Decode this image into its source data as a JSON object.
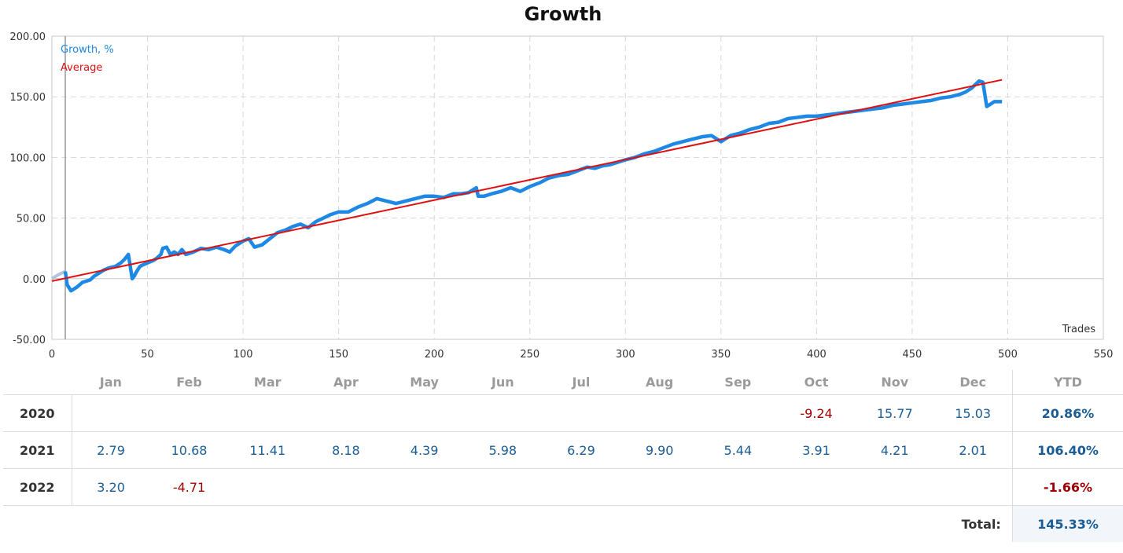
{
  "chart_data": {
    "type": "line",
    "title": "Growth",
    "xlabel": "Trades",
    "ylabel": "",
    "xlim": [
      0,
      550
    ],
    "ylim": [
      -50,
      200
    ],
    "x_ticks": [
      0,
      50,
      100,
      150,
      200,
      250,
      300,
      350,
      400,
      450,
      500,
      550
    ],
    "y_ticks": [
      -50,
      0,
      50,
      100,
      150,
      200
    ],
    "x_tick_labels": [
      "0",
      "50",
      "100",
      "150",
      "200",
      "250",
      "300",
      "350",
      "400",
      "450",
      "500",
      "550"
    ],
    "y_tick_labels": [
      "-50.00",
      "0.00",
      "50.00",
      "100.00",
      "150.00",
      "200.00"
    ],
    "grid": true,
    "legend_position": "top-left",
    "colors": {
      "growth": "#1e88e5",
      "average": "#e01010",
      "pre_start": "#b0c4de",
      "marker": "#999999"
    },
    "start_marker_x": 7,
    "series": [
      {
        "name": "Growth, %",
        "pre_start": [
          [
            0,
            0
          ],
          [
            3,
            3
          ],
          [
            7,
            6
          ]
        ],
        "x": [
          7,
          8,
          10,
          13,
          16,
          20,
          22,
          25,
          27,
          30,
          33,
          36,
          38,
          40,
          42,
          43,
          44,
          46,
          47,
          50,
          53,
          55,
          57,
          58,
          60,
          62,
          64,
          66,
          68,
          70,
          74,
          78,
          82,
          86,
          90,
          93,
          96,
          100,
          103,
          106,
          110,
          114,
          118,
          122,
          126,
          130,
          134,
          138,
          142,
          146,
          150,
          155,
          160,
          165,
          170,
          175,
          180,
          185,
          190,
          195,
          200,
          205,
          210,
          214,
          218,
          222,
          223,
          226,
          230,
          235,
          240,
          245,
          250,
          255,
          260,
          265,
          270,
          275,
          280,
          284,
          288,
          292,
          296,
          300,
          305,
          310,
          315,
          320,
          325,
          330,
          335,
          340,
          345,
          350,
          355,
          360,
          365,
          370,
          375,
          380,
          385,
          390,
          395,
          400,
          405,
          410,
          415,
          420,
          425,
          430,
          435,
          440,
          445,
          450,
          455,
          460,
          465,
          470,
          475,
          478,
          481,
          483,
          485,
          487,
          489,
          491,
          493,
          495,
          497
        ],
        "y": [
          6,
          -5,
          -10,
          -7,
          -3,
          -1,
          2,
          5,
          7,
          9,
          10,
          13,
          16,
          20,
          0,
          2,
          5,
          10,
          11,
          13,
          15,
          17,
          20,
          25,
          26,
          20,
          22,
          20,
          24,
          20,
          22,
          25,
          24,
          26,
          24,
          22,
          27,
          31,
          33,
          26,
          28,
          33,
          38,
          40,
          43,
          45,
          42,
          47,
          50,
          53,
          55,
          55,
          59,
          62,
          66,
          64,
          62,
          64,
          66,
          68,
          68,
          67,
          70,
          70,
          71,
          75,
          68,
          68,
          70,
          72,
          75,
          72,
          76,
          79,
          83,
          85,
          86,
          89,
          92,
          91,
          93,
          94,
          96,
          98,
          100,
          103,
          105,
          108,
          111,
          113,
          115,
          117,
          118,
          113,
          118,
          120,
          123,
          125,
          128,
          129,
          132,
          133,
          134,
          134,
          135,
          136,
          137,
          138,
          139,
          140,
          141,
          143,
          144,
          145,
          146,
          147,
          149,
          150,
          152,
          154,
          157,
          160,
          163,
          162,
          142,
          144,
          146,
          146,
          146
        ]
      },
      {
        "name": "Average",
        "x": [
          0,
          497
        ],
        "y": [
          -2,
          164
        ]
      }
    ]
  },
  "table": {
    "headers": [
      "",
      "Jan",
      "Feb",
      "Mar",
      "Apr",
      "May",
      "Jun",
      "Jul",
      "Aug",
      "Sep",
      "Oct",
      "Nov",
      "Dec",
      "YTD"
    ],
    "rows": [
      {
        "year": "2020",
        "months": [
          "",
          "",
          "",
          "",
          "",
          "",
          "",
          "",
          "",
          "-9.24",
          "15.77",
          "15.03"
        ],
        "ytd": "20.86%"
      },
      {
        "year": "2021",
        "months": [
          "2.79",
          "10.68",
          "11.41",
          "8.18",
          "4.39",
          "5.98",
          "6.29",
          "9.90",
          "5.44",
          "3.91",
          "4.21",
          "2.01"
        ],
        "ytd": "106.40%"
      },
      {
        "year": "2022",
        "months": [
          "3.20",
          "-4.71",
          "",
          "",
          "",
          "",
          "",
          "",
          "",
          "",
          "",
          ""
        ],
        "ytd": "-1.66%"
      }
    ],
    "total_label": "Total:",
    "total_value": "145.33%"
  }
}
